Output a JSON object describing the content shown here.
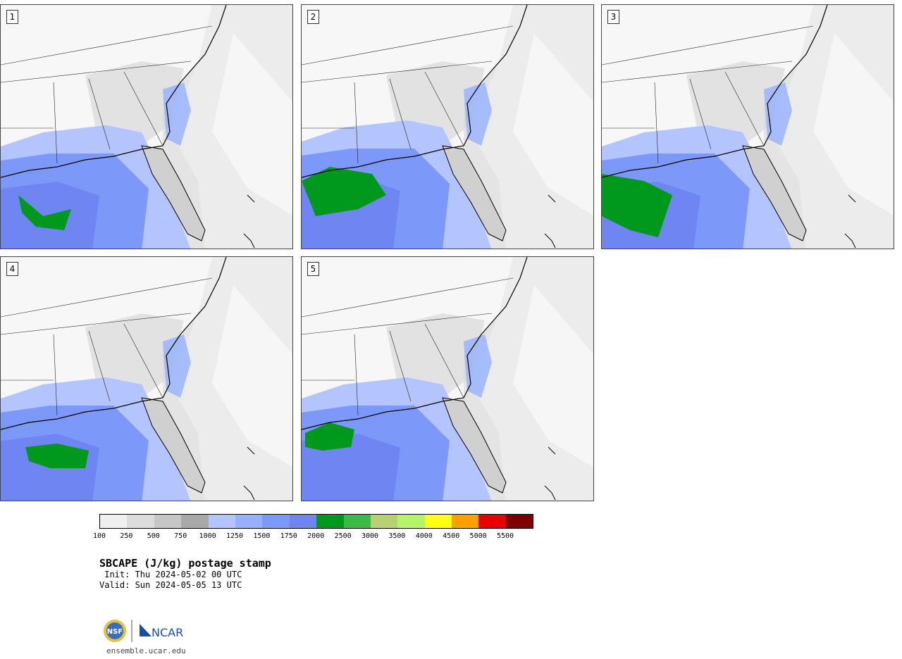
{
  "panels": [
    {
      "label": "1"
    },
    {
      "label": "2"
    },
    {
      "label": "3"
    },
    {
      "label": "4"
    },
    {
      "label": "5"
    }
  ],
  "colorbar": {
    "colors": [
      "#f0f0f0",
      "#dcdcdc",
      "#c6c6c6",
      "#a8a8a8",
      "#b4c4ff",
      "#96b0ff",
      "#7c98f8",
      "#6f86f2",
      "#00991e",
      "#3bbb45",
      "#b8d070",
      "#b4f468",
      "#ffff14",
      "#ffa000",
      "#e60000",
      "#7f0000"
    ],
    "ticks": [
      "100",
      "250",
      "500",
      "750",
      "1000",
      "1250",
      "1500",
      "1750",
      "2000",
      "2500",
      "3000",
      "3500",
      "4000",
      "4500",
      "5000",
      "5500"
    ]
  },
  "title": "SBCAPE (J/kg) postage stamp",
  "init": " Init: Thu 2024-05-02 00 UTC",
  "valid": "Valid: Sun 2024-05-05 13 UTC",
  "logo": {
    "nsf": "NSF",
    "ncar": "NCAR"
  },
  "site": "ensemble.ucar.edu"
}
